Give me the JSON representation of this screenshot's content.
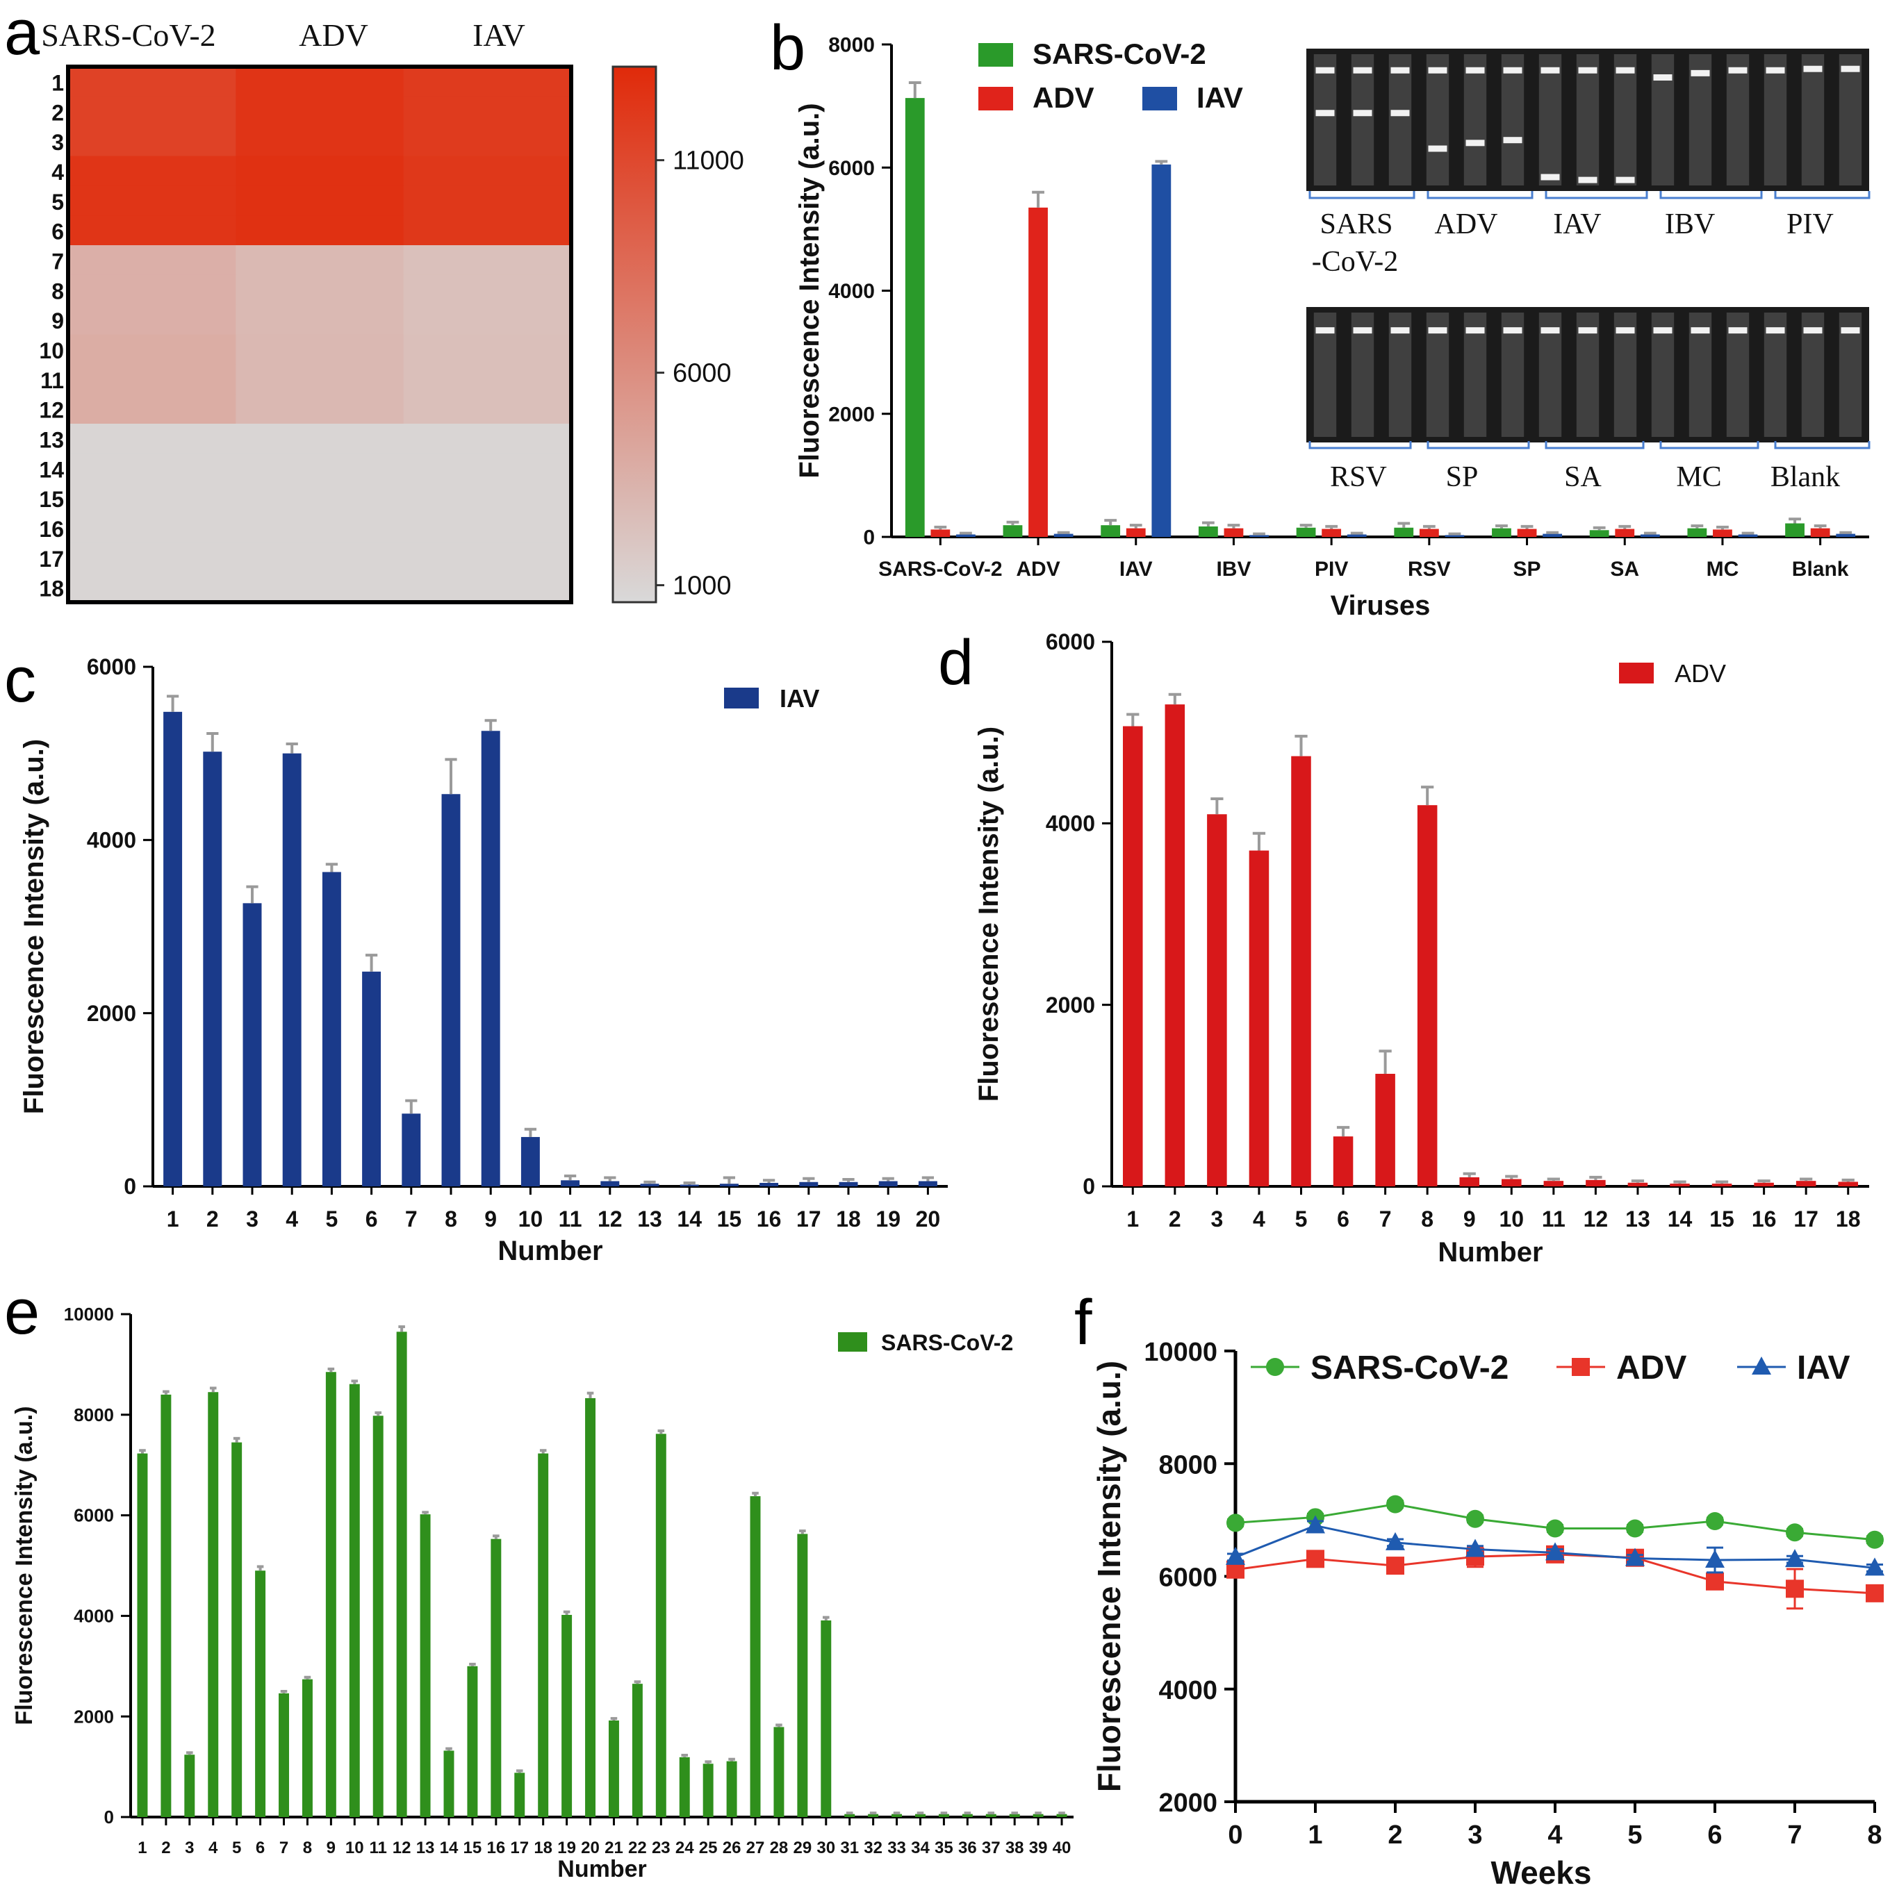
{
  "panels": {
    "a": {
      "letter": "a"
    },
    "b": {
      "letter": "b"
    },
    "c": {
      "letter": "c"
    },
    "d": {
      "letter": "d"
    },
    "e": {
      "letter": "e"
    },
    "f": {
      "letter": "f"
    }
  },
  "chart_data": [
    {
      "id": "a",
      "type": "heatmap",
      "columns": [
        "SARS-CoV-2",
        "ADV",
        "IAV"
      ],
      "rows": [
        "1",
        "2",
        "3",
        "4",
        "5",
        "6",
        "7",
        "8",
        "9",
        "10",
        "11",
        "12",
        "13",
        "14",
        "15",
        "16",
        "17",
        "18"
      ],
      "values": [
        [
          11500,
          12500,
          12000
        ],
        [
          11500,
          12500,
          12000
        ],
        [
          11500,
          12500,
          12000
        ],
        [
          12400,
          12700,
          12200
        ],
        [
          12400,
          12700,
          12200
        ],
        [
          12400,
          12700,
          12200
        ],
        [
          3600,
          2900,
          2400
        ],
        [
          3600,
          2900,
          2400
        ],
        [
          3600,
          2900,
          2400
        ],
        [
          3800,
          3000,
          2500
        ],
        [
          3800,
          3000,
          2500
        ],
        [
          3800,
          3000,
          2500
        ],
        [
          900,
          900,
          900
        ],
        [
          900,
          900,
          900
        ],
        [
          900,
          900,
          900
        ],
        [
          900,
          900,
          900
        ],
        [
          900,
          900,
          900
        ],
        [
          900,
          900,
          900
        ]
      ],
      "colorbar": {
        "min": 600,
        "max": 13200,
        "ticks": [
          1000,
          6000,
          11000
        ],
        "colors": [
          "#d9d9d9",
          "#e02a0a"
        ]
      }
    },
    {
      "id": "b",
      "type": "bar",
      "title": "",
      "xlabel": "Viruses",
      "ylabel": "Fluorescence Intensity (a.u.)",
      "ylim": [
        0,
        8000
      ],
      "yticks": [
        0,
        2000,
        4000,
        6000,
        8000
      ],
      "categories": [
        "SARS-CoV-2",
        "ADV",
        "IAV",
        "IBV",
        "PIV",
        "RSV",
        "SP",
        "SA",
        "MC",
        "Blank"
      ],
      "series": [
        {
          "name": "SARS-CoV-2",
          "color": "#2a9a2a",
          "values": [
            7130,
            190,
            190,
            170,
            150,
            150,
            140,
            110,
            140,
            220
          ],
          "errors": [
            250,
            50,
            80,
            60,
            40,
            70,
            40,
            40,
            40,
            70
          ]
        },
        {
          "name": "ADV",
          "color": "#e0231b",
          "values": [
            120,
            5350,
            140,
            140,
            130,
            130,
            130,
            130,
            120,
            140
          ],
          "errors": [
            40,
            250,
            50,
            50,
            40,
            40,
            40,
            40,
            40,
            40
          ]
        },
        {
          "name": "IAV",
          "color": "#1f4fa3",
          "values": [
            40,
            50,
            6050,
            30,
            40,
            30,
            50,
            40,
            40,
            50
          ],
          "errors": [
            20,
            20,
            50,
            20,
            20,
            20,
            20,
            20,
            20,
            20
          ]
        }
      ],
      "gel_labels_top": [
        "SARS",
        "-CoV-2",
        "ADV",
        "IAV",
        "IBV",
        "PIV"
      ],
      "gel_labels_bottom": [
        "RSV",
        "SP",
        "SA",
        "MC",
        "Blank"
      ]
    },
    {
      "id": "c",
      "type": "bar",
      "xlabel": "Number",
      "ylabel": "Fluorescence Intensity (a.u.)",
      "ylim": [
        0,
        6000
      ],
      "yticks": [
        0,
        2000,
        4000,
        6000
      ],
      "categories": [
        "1",
        "2",
        "3",
        "4",
        "5",
        "6",
        "7",
        "8",
        "9",
        "10",
        "11",
        "12",
        "13",
        "14",
        "15",
        "16",
        "17",
        "18",
        "19",
        "20"
      ],
      "series": [
        {
          "name": "IAV",
          "color": "#1a3a8a",
          "values": [
            5480,
            5020,
            3270,
            5000,
            3630,
            2480,
            840,
            4530,
            5260,
            570,
            70,
            60,
            30,
            20,
            30,
            40,
            50,
            50,
            60,
            60
          ],
          "errors": [
            180,
            210,
            190,
            110,
            90,
            190,
            150,
            400,
            120,
            90,
            50,
            40,
            20,
            20,
            70,
            30,
            40,
            30,
            30,
            40
          ]
        }
      ]
    },
    {
      "id": "d",
      "type": "bar",
      "xlabel": "Number",
      "ylabel": "Fluorescence Intensity (a.u.)",
      "ylim": [
        0,
        6000
      ],
      "yticks": [
        0,
        2000,
        4000,
        6000
      ],
      "categories": [
        "1",
        "2",
        "3",
        "4",
        "5",
        "6",
        "7",
        "8",
        "9",
        "10",
        "11",
        "12",
        "13",
        "14",
        "15",
        "16",
        "17",
        "18"
      ],
      "series": [
        {
          "name": "ADV",
          "color": "#d8181a",
          "values": [
            5070,
            5310,
            4100,
            3700,
            4740,
            550,
            1240,
            4200,
            100,
            80,
            60,
            70,
            40,
            30,
            30,
            40,
            60,
            50
          ],
          "errors": [
            130,
            110,
            170,
            190,
            220,
            100,
            250,
            200,
            40,
            30,
            20,
            30,
            20,
            20,
            20,
            20,
            20,
            20
          ]
        }
      ]
    },
    {
      "id": "e",
      "type": "bar",
      "xlabel": "Number",
      "ylabel": "Fluorescence Intensity (a.u.)",
      "ylim": [
        0,
        10000
      ],
      "yticks": [
        0,
        2000,
        4000,
        6000,
        8000,
        10000
      ],
      "categories": [
        "1",
        "2",
        "3",
        "4",
        "5",
        "6",
        "7",
        "8",
        "9",
        "10",
        "11",
        "12",
        "13",
        "14",
        "15",
        "16",
        "17",
        "18",
        "19",
        "20",
        "21",
        "22",
        "23",
        "24",
        "25",
        "26",
        "27",
        "28",
        "29",
        "30",
        "31",
        "32",
        "33",
        "34",
        "35",
        "36",
        "37",
        "38",
        "39",
        "40"
      ],
      "series": [
        {
          "name": "SARS-CoV-2",
          "color": "#2f8f1c",
          "values": [
            7230,
            8400,
            1240,
            8450,
            7450,
            4900,
            2460,
            2740,
            8850,
            8610,
            7980,
            9650,
            6020,
            1320,
            3000,
            5530,
            880,
            7230,
            4020,
            8330,
            1920,
            2650,
            7620,
            1190,
            1060,
            1110,
            6380,
            1790,
            5630,
            3910,
            60,
            60,
            60,
            60,
            60,
            60,
            60,
            60,
            60,
            60
          ],
          "errors": [
            60,
            60,
            40,
            80,
            80,
            80,
            40,
            40,
            60,
            60,
            60,
            100,
            40,
            40,
            40,
            60,
            40,
            60,
            60,
            100,
            40,
            40,
            60,
            40,
            40,
            40,
            60,
            40,
            60,
            60,
            20,
            20,
            20,
            20,
            20,
            20,
            20,
            20,
            20,
            20
          ]
        }
      ]
    },
    {
      "id": "f",
      "type": "line",
      "xlabel": "Weeks",
      "ylabel": "Fluorescence Intensity (a.u.)",
      "xlim": [
        0,
        8
      ],
      "ylim": [
        2000,
        10000
      ],
      "xticks": [
        0,
        1,
        2,
        3,
        4,
        5,
        6,
        7,
        8
      ],
      "yticks": [
        2000,
        4000,
        6000,
        8000,
        10000
      ],
      "series": [
        {
          "name": "SARS-CoV-2",
          "color": "#3aaa35",
          "marker": "circle",
          "x": [
            0,
            1,
            2,
            3,
            4,
            5,
            6,
            7,
            8
          ],
          "y": [
            6950,
            7050,
            7280,
            7020,
            6850,
            6850,
            6980,
            6780,
            6650
          ],
          "errors": [
            60,
            60,
            60,
            60,
            60,
            60,
            60,
            60,
            60
          ]
        },
        {
          "name": "ADV",
          "color": "#e8352a",
          "marker": "square",
          "x": [
            0,
            1,
            2,
            3,
            4,
            5,
            6,
            7,
            8
          ],
          "y": [
            6120,
            6310,
            6190,
            6350,
            6390,
            6330,
            5910,
            5780,
            5700
          ],
          "errors": [
            60,
            80,
            80,
            180,
            100,
            120,
            120,
            350,
            80
          ]
        },
        {
          "name": "IAV",
          "color": "#1f5bb0",
          "marker": "triangle",
          "x": [
            0,
            1,
            2,
            3,
            4,
            5,
            6,
            7,
            8
          ],
          "y": [
            6340,
            6900,
            6600,
            6480,
            6420,
            6320,
            6290,
            6300,
            6150
          ],
          "errors": [
            60,
            80,
            60,
            60,
            60,
            60,
            220,
            60,
            60
          ]
        }
      ]
    }
  ]
}
